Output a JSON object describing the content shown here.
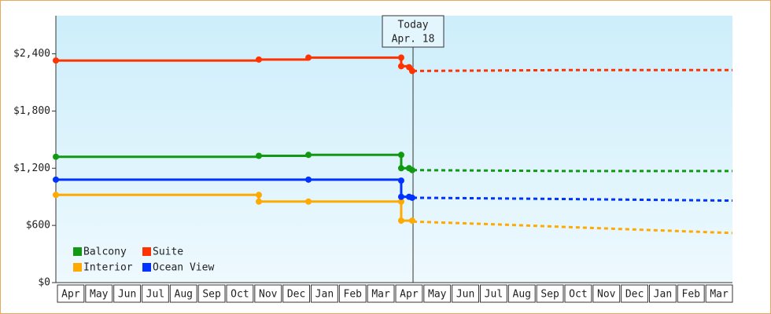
{
  "chart_data": {
    "type": "step-line",
    "categories": [
      "Apr",
      "May",
      "Jun",
      "Jul",
      "Aug",
      "Sep",
      "Oct",
      "Nov",
      "Dec",
      "Jan",
      "Feb",
      "Mar",
      "Apr",
      "May",
      "Jun",
      "Jul",
      "Aug",
      "Sep",
      "Oct",
      "Nov",
      "Dec",
      "Jan",
      "Feb",
      "Mar"
    ],
    "xlim": [
      0,
      24
    ],
    "ylim": [
      0,
      2800
    ],
    "yticks": [
      {
        "value": 0,
        "label": "$0"
      },
      {
        "value": 600,
        "label": "$600"
      },
      {
        "value": 1200,
        "label": "$1,200"
      },
      {
        "value": 1800,
        "label": "$1,800"
      },
      {
        "value": 2400,
        "label": "$2,400"
      }
    ],
    "today": {
      "x": 12.67,
      "label": "Today",
      "date": "Apr. 18"
    },
    "series": [
      {
        "name": "Balcony",
        "color": "#119911",
        "x": [
          0,
          7.2,
          8.96,
          12.25,
          12.25,
          12.53,
          12.64
        ],
        "values": [
          1320,
          1330,
          1340,
          1340,
          1200,
          1200,
          1180
        ],
        "forecast_x": [
          12.67,
          18.4,
          24
        ],
        "forecast_values": [
          1180,
          1170,
          1170
        ]
      },
      {
        "name": "Suite",
        "color": "#ff3300",
        "x": [
          0,
          7.2,
          8.96,
          12.25,
          12.25,
          12.53,
          12.64
        ],
        "values": [
          2330,
          2340,
          2360,
          2360,
          2270,
          2260,
          2220
        ],
        "forecast_x": [
          12.67,
          18.4,
          24
        ],
        "forecast_values": [
          2220,
          2230,
          2230
        ]
      },
      {
        "name": "Interior",
        "color": "#ffaa00",
        "x": [
          0,
          7.2,
          7.2,
          8.96,
          12.25,
          12.25,
          12.64
        ],
        "values": [
          920,
          920,
          850,
          850,
          850,
          650,
          650
        ],
        "forecast_x": [
          12.67,
          15.7,
          18.4,
          21.2,
          24
        ],
        "forecast_values": [
          640,
          610,
          580,
          550,
          520
        ]
      },
      {
        "name": "Ocean View",
        "color": "#0033ff",
        "x": [
          0,
          8.96,
          12.25,
          12.25,
          12.53,
          12.64
        ],
        "values": [
          1080,
          1080,
          1070,
          900,
          900,
          890
        ],
        "forecast_x": [
          12.67,
          16.9,
          20.4,
          24
        ],
        "forecast_values": [
          890,
          880,
          870,
          860
        ]
      }
    ]
  }
}
